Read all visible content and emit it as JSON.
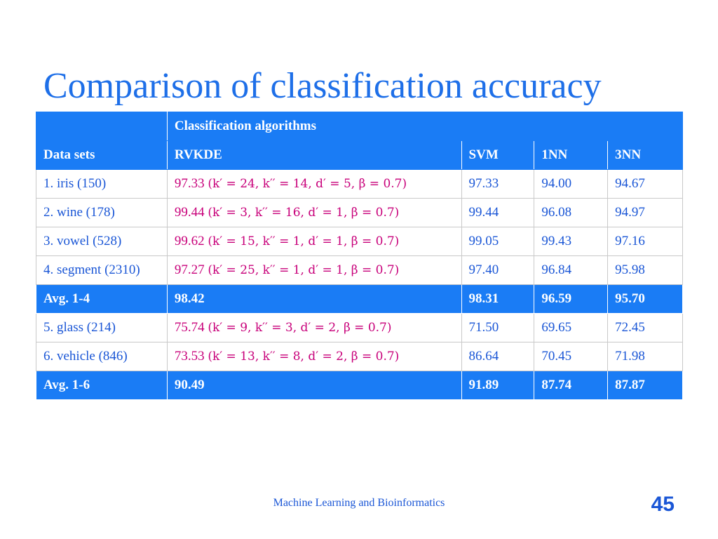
{
  "title": "Comparison of classification accuracy",
  "table": {
    "group_header": "Classification algorithms",
    "columns": [
      "Data sets",
      "RVKDE",
      "SVM",
      "1NN",
      "3NN"
    ],
    "rows": [
      {
        "type": "data",
        "dataset": "1. iris (150)",
        "rvkde": "97.33",
        "params": "(k′ = 24, k′′ = 14, d′ = 5, β = 0.7)",
        "svm": "97.33",
        "nn1": "94.00",
        "nn3": "94.67"
      },
      {
        "type": "data",
        "dataset": "2. wine (178)",
        "rvkde": "99.44",
        "params": "(k′ = 3, k′′ = 16, d′ = 1, β = 0.7)",
        "svm": "99.44",
        "nn1": "96.08",
        "nn3": "94.97"
      },
      {
        "type": "data",
        "dataset": "3. vowel (528)",
        "rvkde": "99.62",
        "params": "(k′ = 15, k′′ = 1, d′ = 1, β = 0.7)",
        "svm": "99.05",
        "nn1": "99.43",
        "nn3": "97.16"
      },
      {
        "type": "data",
        "dataset": "4. segment (2310)",
        "rvkde": "97.27",
        "params": "(k′ = 25, k′′ = 1, d′ = 1, β = 0.7)",
        "svm": "97.40",
        "nn1": "96.84",
        "nn3": "95.98"
      },
      {
        "type": "avg",
        "dataset": "Avg. 1-4",
        "rvkde": "98.42",
        "params": "",
        "svm": "98.31",
        "nn1": "96.59",
        "nn3": "95.70"
      },
      {
        "type": "data",
        "dataset": "5. glass (214)",
        "rvkde": "75.74",
        "params": "(k′ = 9, k′′ = 3, d′ = 2, β = 0.7)",
        "svm": "71.50",
        "nn1": "69.65",
        "nn3": "72.45"
      },
      {
        "type": "data",
        "dataset": "6. vehicle (846)",
        "rvkde": "73.53",
        "params": "(k′ = 13, k′′ = 8, d′ = 2, β = 0.7)",
        "svm": "86.64",
        "nn1": "70.45",
        "nn3": "71.98"
      },
      {
        "type": "avg",
        "dataset": "Avg. 1-6",
        "rvkde": "90.49",
        "params": "",
        "svm": "91.89",
        "nn1": "87.74",
        "nn3": "87.87"
      }
    ]
  },
  "footer": "Machine Learning and Bioinformatics",
  "page_number": "45"
}
